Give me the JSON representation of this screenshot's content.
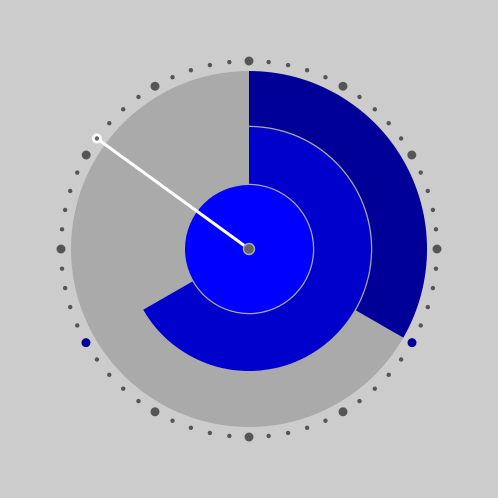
{
  "colors": {
    "background": "#cccccc",
    "face": "#aaaaaa",
    "outer_ring": "#000099",
    "middle_ring": "#0000cc",
    "inner_disc": "#0000ff",
    "separator": "#aaaaaa",
    "tick": "#555555",
    "marker": "#000099",
    "pointer": "#ffffff",
    "hub": "#666666"
  },
  "dial": {
    "arcs": [
      {
        "name": "outer",
        "level": 0.333
      },
      {
        "name": "middle",
        "level": 0.667
      },
      {
        "name": "inner",
        "level": 1.0
      }
    ],
    "tick_count": 60,
    "major_every": 5,
    "markers": [
      0.333,
      0.667
    ],
    "pointer_value": 0.85
  }
}
